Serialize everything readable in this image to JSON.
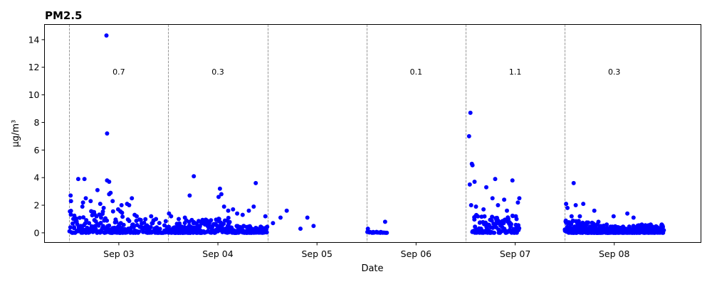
{
  "chart_data": {
    "type": "scatter",
    "title": "PM2.5",
    "xlabel": "Date",
    "ylabel": "µg/m³",
    "xlim": [
      "2023-09-02T06:00",
      "2023-09-08T21:00"
    ],
    "ylim": [
      -0.7,
      15.1
    ],
    "xticks": [
      {
        "date": "2023-09-03",
        "label": "Sep 03"
      },
      {
        "date": "2023-09-04",
        "label": "Sep 04"
      },
      {
        "date": "2023-09-05",
        "label": "Sep 05"
      },
      {
        "date": "2023-09-06",
        "label": "Sep 06"
      },
      {
        "date": "2023-09-07",
        "label": "Sep 07"
      },
      {
        "date": "2023-09-08",
        "label": "Sep 08"
      }
    ],
    "yticks": [
      0,
      2,
      4,
      6,
      8,
      10,
      12,
      14
    ],
    "day_boundaries": [
      "2023-09-02T12:00",
      "2023-09-03T12:00",
      "2023-09-04T12:00",
      "2023-09-05T12:00",
      "2023-09-06T12:00",
      "2023-09-07T12:00"
    ],
    "day_means": [
      {
        "date": "2023-09-03",
        "label": "0.7"
      },
      {
        "date": "2023-09-04",
        "label": "0.3"
      },
      {
        "date": "2023-09-06",
        "label": "0.1"
      },
      {
        "date": "2023-09-07",
        "label": "1.1"
      },
      {
        "date": "2023-09-08",
        "label": "0.3"
      }
    ],
    "marker_color": "#0000ff",
    "boundary_color": "#808080",
    "series": [
      {
        "points": [
          [
            "2023-09-02T12:20",
            2.7
          ],
          [
            "2023-09-02T12:25",
            2.3
          ],
          [
            "2023-09-02T13:10",
            0.4
          ],
          [
            "2023-09-02T14:10",
            3.9
          ],
          [
            "2023-09-02T15:40",
            3.9
          ],
          [
            "2023-09-02T15:20",
            2.2
          ],
          [
            "2023-09-02T16:00",
            2.5
          ],
          [
            "2023-09-02T15:10",
            1.9
          ],
          [
            "2023-09-02T17:10",
            2.3
          ],
          [
            "2023-09-02T18:00",
            1.5
          ],
          [
            "2023-09-02T18:50",
            3.1
          ],
          [
            "2023-09-02T19:30",
            2.1
          ],
          [
            "2023-09-02T20:20",
            1.8
          ],
          [
            "2023-09-02T21:00",
            14.3
          ],
          [
            "2023-09-02T21:10",
            7.2
          ],
          [
            "2023-09-02T21:10",
            3.8
          ],
          [
            "2023-09-02T21:40",
            3.7
          ],
          [
            "2023-09-02T21:40",
            2.8
          ],
          [
            "2023-09-02T22:00",
            2.9
          ],
          [
            "2023-09-02T22:30",
            2.3
          ],
          [
            "2023-09-02T23:50",
            1.7
          ],
          [
            "2023-09-03T00:40",
            2.0
          ],
          [
            "2023-09-03T02:00",
            2.1
          ],
          [
            "2023-09-03T02:30",
            2.0
          ],
          [
            "2023-09-03T03:10",
            2.5
          ],
          [
            "2023-09-03T03:50",
            1.3
          ],
          [
            "2023-09-03T04:20",
            1.2
          ],
          [
            "2023-09-03T07:50",
            1.2
          ],
          [
            "2023-09-03T09:00",
            1.0
          ],
          [
            "2023-09-03T12:10",
            1.4
          ],
          [
            "2023-09-03T12:40",
            1.2
          ],
          [
            "2023-09-03T14:30",
            1.0
          ],
          [
            "2023-09-03T17:10",
            2.7
          ],
          [
            "2023-09-03T18:10",
            4.1
          ],
          [
            "2023-09-03T16:00",
            1.1
          ],
          [
            "2023-09-03T21:30",
            0.5
          ],
          [
            "2023-09-03T23:30",
            0.2
          ],
          [
            "2023-09-04T00:10",
            2.6
          ],
          [
            "2023-09-04T00:30",
            3.2
          ],
          [
            "2023-09-04T00:50",
            2.8
          ],
          [
            "2023-09-04T01:30",
            1.9
          ],
          [
            "2023-09-04T02:30",
            1.6
          ],
          [
            "2023-09-04T03:40",
            1.7
          ],
          [
            "2023-09-04T04:40",
            1.4
          ],
          [
            "2023-09-04T06:00",
            1.3
          ],
          [
            "2023-09-04T07:30",
            1.6
          ],
          [
            "2023-09-04T08:40",
            1.9
          ],
          [
            "2023-09-04T09:10",
            3.6
          ],
          [
            "2023-09-04T11:30",
            1.2
          ],
          [
            "2023-09-04T13:20",
            0.7
          ],
          [
            "2023-09-04T15:10",
            1.1
          ],
          [
            "2023-09-04T16:40",
            1.6
          ],
          [
            "2023-09-04T20:00",
            0.3
          ],
          [
            "2023-09-04T21:40",
            1.1
          ],
          [
            "2023-09-04T23:10",
            0.5
          ],
          [
            "2023-09-05T12:20",
            0.3
          ],
          [
            "2023-09-05T16:30",
            0.8
          ],
          [
            "2023-09-06T12:50",
            7.0
          ],
          [
            "2023-09-06T13:10",
            8.7
          ],
          [
            "2023-09-06T13:30",
            5.0
          ],
          [
            "2023-09-06T13:40",
            4.9
          ],
          [
            "2023-09-06T13:00",
            3.5
          ],
          [
            "2023-09-06T14:10",
            3.7
          ],
          [
            "2023-09-06T13:20",
            2.0
          ],
          [
            "2023-09-06T14:30",
            1.9
          ],
          [
            "2023-09-06T16:20",
            1.7
          ],
          [
            "2023-09-06T17:00",
            3.3
          ],
          [
            "2023-09-06T18:30",
            2.5
          ],
          [
            "2023-09-06T19:10",
            3.9
          ],
          [
            "2023-09-06T19:50",
            2.0
          ],
          [
            "2023-09-06T21:20",
            2.4
          ],
          [
            "2023-09-06T22:00",
            1.6
          ],
          [
            "2023-09-06T23:20",
            3.8
          ],
          [
            "2023-09-07T00:20",
            1.0
          ],
          [
            "2023-09-07T00:40",
            2.2
          ],
          [
            "2023-09-07T01:00",
            2.5
          ],
          [
            "2023-09-07T00:10",
            1.2
          ],
          [
            "2023-09-07T12:20",
            2.1
          ],
          [
            "2023-09-07T12:40",
            1.8
          ],
          [
            "2023-09-07T13:40",
            1.2
          ],
          [
            "2023-09-07T14:10",
            3.6
          ],
          [
            "2023-09-07T14:40",
            2.0
          ],
          [
            "2023-09-07T15:40",
            1.2
          ],
          [
            "2023-09-07T16:30",
            2.1
          ],
          [
            "2023-09-07T19:10",
            1.6
          ],
          [
            "2023-09-07T20:10",
            0.8
          ],
          [
            "2023-09-07T22:10",
            0.6
          ],
          [
            "2023-09-07T23:50",
            1.2
          ],
          [
            "2023-09-08T03:10",
            1.4
          ],
          [
            "2023-09-08T04:40",
            1.1
          ],
          [
            "2023-09-08T06:40",
            0.6
          ],
          [
            "2023-09-08T08:50",
            0.6
          ],
          [
            "2023-09-08T11:30",
            0.6
          ]
        ]
      }
    ],
    "dense_bands": [
      {
        "start": "2023-09-02T12:00",
        "end": "2023-09-03T01:00",
        "max": 1.6,
        "n": 130
      },
      {
        "start": "2023-09-03T00:00",
        "end": "2023-09-03T12:00",
        "max": 1.0,
        "n": 90
      },
      {
        "start": "2023-09-03T12:00",
        "end": "2023-09-03T20:00",
        "max": 0.45,
        "n": 100
      },
      {
        "start": "2023-09-03T14:00",
        "end": "2023-09-04T03:00",
        "max": 1.1,
        "n": 120
      },
      {
        "start": "2023-09-04T02:00",
        "end": "2023-09-04T12:00",
        "max": 0.5,
        "n": 140
      },
      {
        "start": "2023-09-05T12:00",
        "end": "2023-09-05T17:00",
        "max": 0.1,
        "n": 18
      },
      {
        "start": "2023-09-06T13:30",
        "end": "2023-09-06T16:00",
        "max": 0.15,
        "n": 14
      },
      {
        "start": "2023-09-06T14:00",
        "end": "2023-09-07T01:00",
        "max": 1.3,
        "n": 110
      },
      {
        "start": "2023-09-07T12:00",
        "end": "2023-09-07T20:00",
        "max": 0.9,
        "n": 120
      },
      {
        "start": "2023-09-07T18:00",
        "end": "2023-09-08T12:00",
        "max": 0.55,
        "n": 340
      }
    ]
  }
}
